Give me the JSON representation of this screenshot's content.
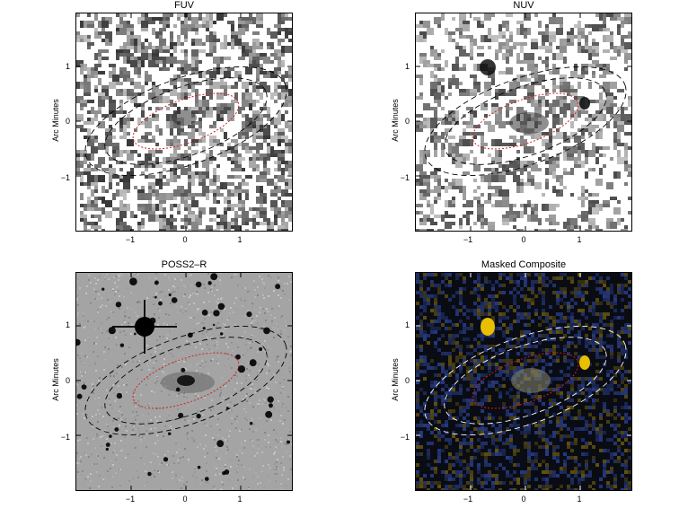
{
  "panels": [
    {
      "title": "FUV",
      "ylabel": "Arc Minutes",
      "style": "fuv"
    },
    {
      "title": "NUV",
      "ylabel": "Arc Minutes",
      "style": "nuv"
    },
    {
      "title": "POSS2–R",
      "ylabel": "Arc Minutes",
      "style": "poss"
    },
    {
      "title": "Masked Composite",
      "ylabel": "Arc Minutes",
      "style": "comp"
    }
  ],
  "axis": {
    "x_ticks": [
      "−1",
      "0",
      "1"
    ],
    "y_ticks": [
      "1",
      "0",
      "−1"
    ]
  },
  "colors": {
    "inner_ellipse": "#cc2222",
    "outer_ellipse_dark": "#000000",
    "outer_ellipse_light": "#ffffff",
    "composite_yellow": "#e8c000",
    "composite_blue": "#2a3f8a"
  }
}
